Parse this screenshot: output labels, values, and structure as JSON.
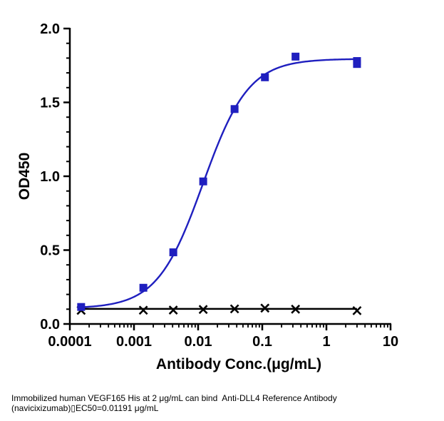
{
  "chart_data": {
    "type": "scatter",
    "x_scale": "log",
    "xlabel": "Antibody Conc.(μg/mL)",
    "ylabel": "OD450",
    "xlim": [
      0.0001,
      10
    ],
    "ylim": [
      0,
      2.0
    ],
    "x_ticks": [
      "0.0001",
      "0.001",
      "0.01",
      "0.1",
      "1",
      "10"
    ],
    "y_ticks": [
      "0.0",
      "0.5",
      "1.0",
      "1.5",
      "2.0"
    ],
    "legend": "none",
    "grid": false,
    "series": [
      {
        "marker": "square",
        "color": "#1f1fbf",
        "x": [
          0.00015,
          0.0014,
          0.0041,
          0.012,
          0.037,
          0.11,
          0.33,
          3.0,
          3.0
        ],
        "y": [
          0.115,
          0.245,
          0.485,
          0.965,
          1.455,
          1.67,
          1.81,
          1.78,
          1.76
        ],
        "fit": {
          "model": "4PL",
          "bottom": 0.105,
          "top": 1.795,
          "ec50": 0.01191,
          "hill": 1.22
        }
      },
      {
        "marker": "x",
        "color": "#000000",
        "x": [
          0.00015,
          0.0014,
          0.0041,
          0.012,
          0.037,
          0.11,
          0.33,
          3.0
        ],
        "y": [
          0.092,
          0.093,
          0.094,
          0.098,
          0.102,
          0.107,
          0.1,
          0.09
        ],
        "fit_line_y": 0.102
      }
    ]
  },
  "caption": {
    "line1": "Immobilized human VEGF165 His at 2 μg/mL can bind  Anti-DLL4 Reference Antibody",
    "line2": "(navicixizumab)▯EC50=0.01191 μg/mL"
  }
}
